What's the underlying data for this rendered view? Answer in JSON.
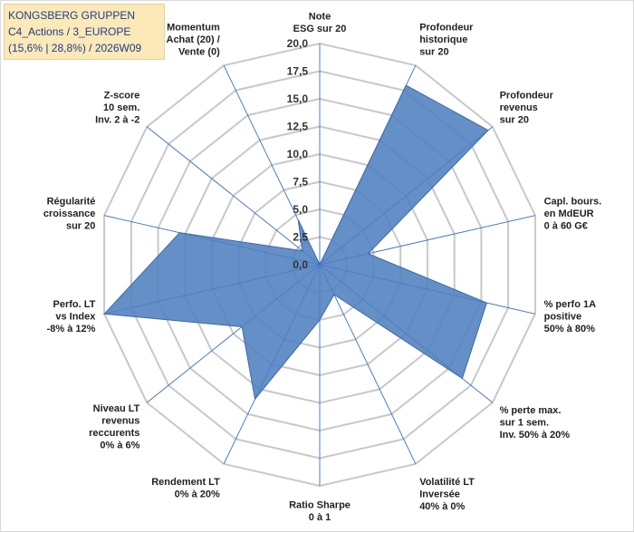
{
  "header": {
    "lines": [
      "KONGSBERG GRUPPEN",
      "C4_Actions / 3_EUROPE",
      "(15,6% | 28,8%) / 2026W09"
    ]
  },
  "chart_data": {
    "type": "radar",
    "title": "KONGSBERG GRUPPEN",
    "rmin": 0,
    "rmax": 20,
    "ticks": [
      0,
      2.5,
      5,
      7.5,
      10,
      12.5,
      15,
      17.5,
      20
    ],
    "tick_labels": [
      "0,0",
      "2,5",
      "5,0",
      "7,5",
      "10,0",
      "12,5",
      "15,0",
      "17,5",
      "20,0"
    ],
    "axes": [
      {
        "label": [
          "Note",
          "ESG sur 20"
        ],
        "value": 0
      },
      {
        "label": [
          "Profondeur",
          "historique",
          "sur 20"
        ],
        "value": 18
      },
      {
        "label": [
          "Profondeur",
          "revenus",
          "sur 20"
        ],
        "value": 19.5
      },
      {
        "label": [
          "Capl. bours.",
          "en MdEUR",
          "0 à 60 G€"
        ],
        "value": 4.5
      },
      {
        "label": [
          "% perfo 1A",
          "positive",
          "50% à 80%"
        ],
        "value": 15.5
      },
      {
        "label": [
          "% perte max.",
          "sur 1 sem.",
          "Inv. 50% à 20%"
        ],
        "value": 16.5
      },
      {
        "label": [
          "Volatilité LT",
          "Inversée",
          "40% à 0%"
        ],
        "value": 3
      },
      {
        "label": [
          "Ratio Sharpe",
          "0 à 1"
        ],
        "value": 5
      },
      {
        "label": [
          "Rendement LT",
          "0% à 20%"
        ],
        "value": 13.5
      },
      {
        "label": [
          "Niveau LT",
          "revenus",
          "reccurents",
          "0% à 6%"
        ],
        "value": 9
      },
      {
        "label": [
          "Perfo. LT",
          "vs Index",
          "-8% à 12%"
        ],
        "value": 20
      },
      {
        "label": [
          "Régularité",
          "croissance",
          "sur 20"
        ],
        "value": 13
      },
      {
        "label": [
          "Z-score",
          "10 sem.",
          "Inv. 2 à -2"
        ],
        "value": 2
      },
      {
        "label": [
          "Momentum",
          "Achat (20) /",
          "Vente (0)"
        ],
        "value": 4.5
      }
    ],
    "series_color": "#4f7fbf",
    "grid": true
  }
}
